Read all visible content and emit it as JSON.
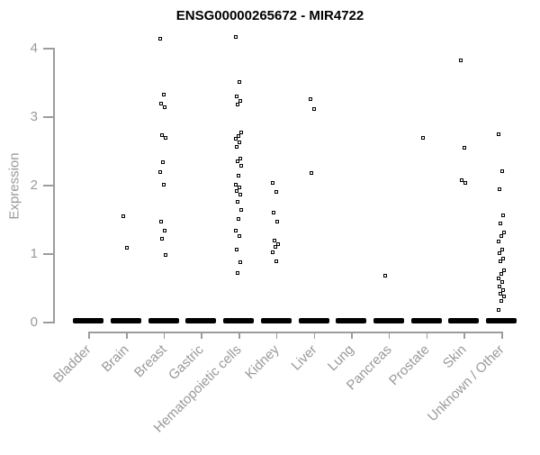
{
  "chart_data": {
    "type": "scatter",
    "title": "ENSG00000265672 - MIR4722",
    "xlabel": "",
    "ylabel": "Expression",
    "ylim": [
      0,
      4.2
    ],
    "yticks": [
      0,
      1,
      2,
      3,
      4
    ],
    "grid": false,
    "legend": false,
    "point_style": "open-square",
    "note": "strip chart; every category also has a dense cluster of samples at expression 0 rendered as a solid bar",
    "colors": {
      "point": "#000000",
      "axis": "#9c9c9c",
      "axis_text": "#999999",
      "title": "#000000",
      "background": "#ffffff"
    },
    "categories": [
      "Bladder",
      "Brain",
      "Breast",
      "Gastric",
      "Hematopoietic cells",
      "Kidney",
      "Liver",
      "Lung",
      "Pancreas",
      "Prostate",
      "Skin",
      "Unknown / Other"
    ],
    "series": [
      {
        "name": "Bladder",
        "zero_cluster": true,
        "values": []
      },
      {
        "name": "Brain",
        "zero_cluster": true,
        "values": [
          1.53,
          1.07
        ]
      },
      {
        "name": "Breast",
        "zero_cluster": true,
        "values": [
          4.13,
          3.31,
          3.18,
          3.12,
          2.72,
          2.68,
          2.32,
          2.18,
          2.0,
          1.45,
          1.32,
          1.21,
          0.97
        ]
      },
      {
        "name": "Gastric",
        "zero_cluster": true,
        "values": []
      },
      {
        "name": "Hematopoietic cells",
        "zero_cluster": true,
        "values": [
          4.15,
          3.49,
          3.28,
          3.22,
          3.16,
          2.76,
          2.71,
          2.66,
          2.61,
          2.55,
          2.38,
          2.33,
          2.27,
          2.12,
          2.0,
          1.95,
          1.9,
          1.85,
          1.74,
          1.63,
          1.5,
          1.32,
          1.25,
          1.04,
          0.86,
          0.7
        ]
      },
      {
        "name": "Kidney",
        "zero_cluster": true,
        "values": [
          2.02,
          1.89,
          1.58,
          1.45,
          1.18,
          1.13,
          1.08,
          1.01,
          0.88
        ]
      },
      {
        "name": "Liver",
        "zero_cluster": true,
        "values": [
          3.25,
          3.1,
          2.17
        ]
      },
      {
        "name": "Lung",
        "zero_cluster": true,
        "values": []
      },
      {
        "name": "Pancreas",
        "zero_cluster": true,
        "values": [
          0.66
        ]
      },
      {
        "name": "Prostate",
        "zero_cluster": true,
        "values": [
          2.68
        ]
      },
      {
        "name": "Skin",
        "zero_cluster": true,
        "values": [
          3.81,
          2.53,
          2.06,
          2.02
        ]
      },
      {
        "name": "Unknown / Other",
        "zero_cluster": true,
        "values": [
          2.73,
          2.19,
          1.93,
          1.55,
          1.43,
          1.3,
          1.25,
          1.16,
          1.04,
          0.99,
          0.92,
          0.88,
          0.75,
          0.69,
          0.63,
          0.57,
          0.51,
          0.45,
          0.4,
          0.36,
          0.29,
          0.16
        ]
      }
    ]
  }
}
